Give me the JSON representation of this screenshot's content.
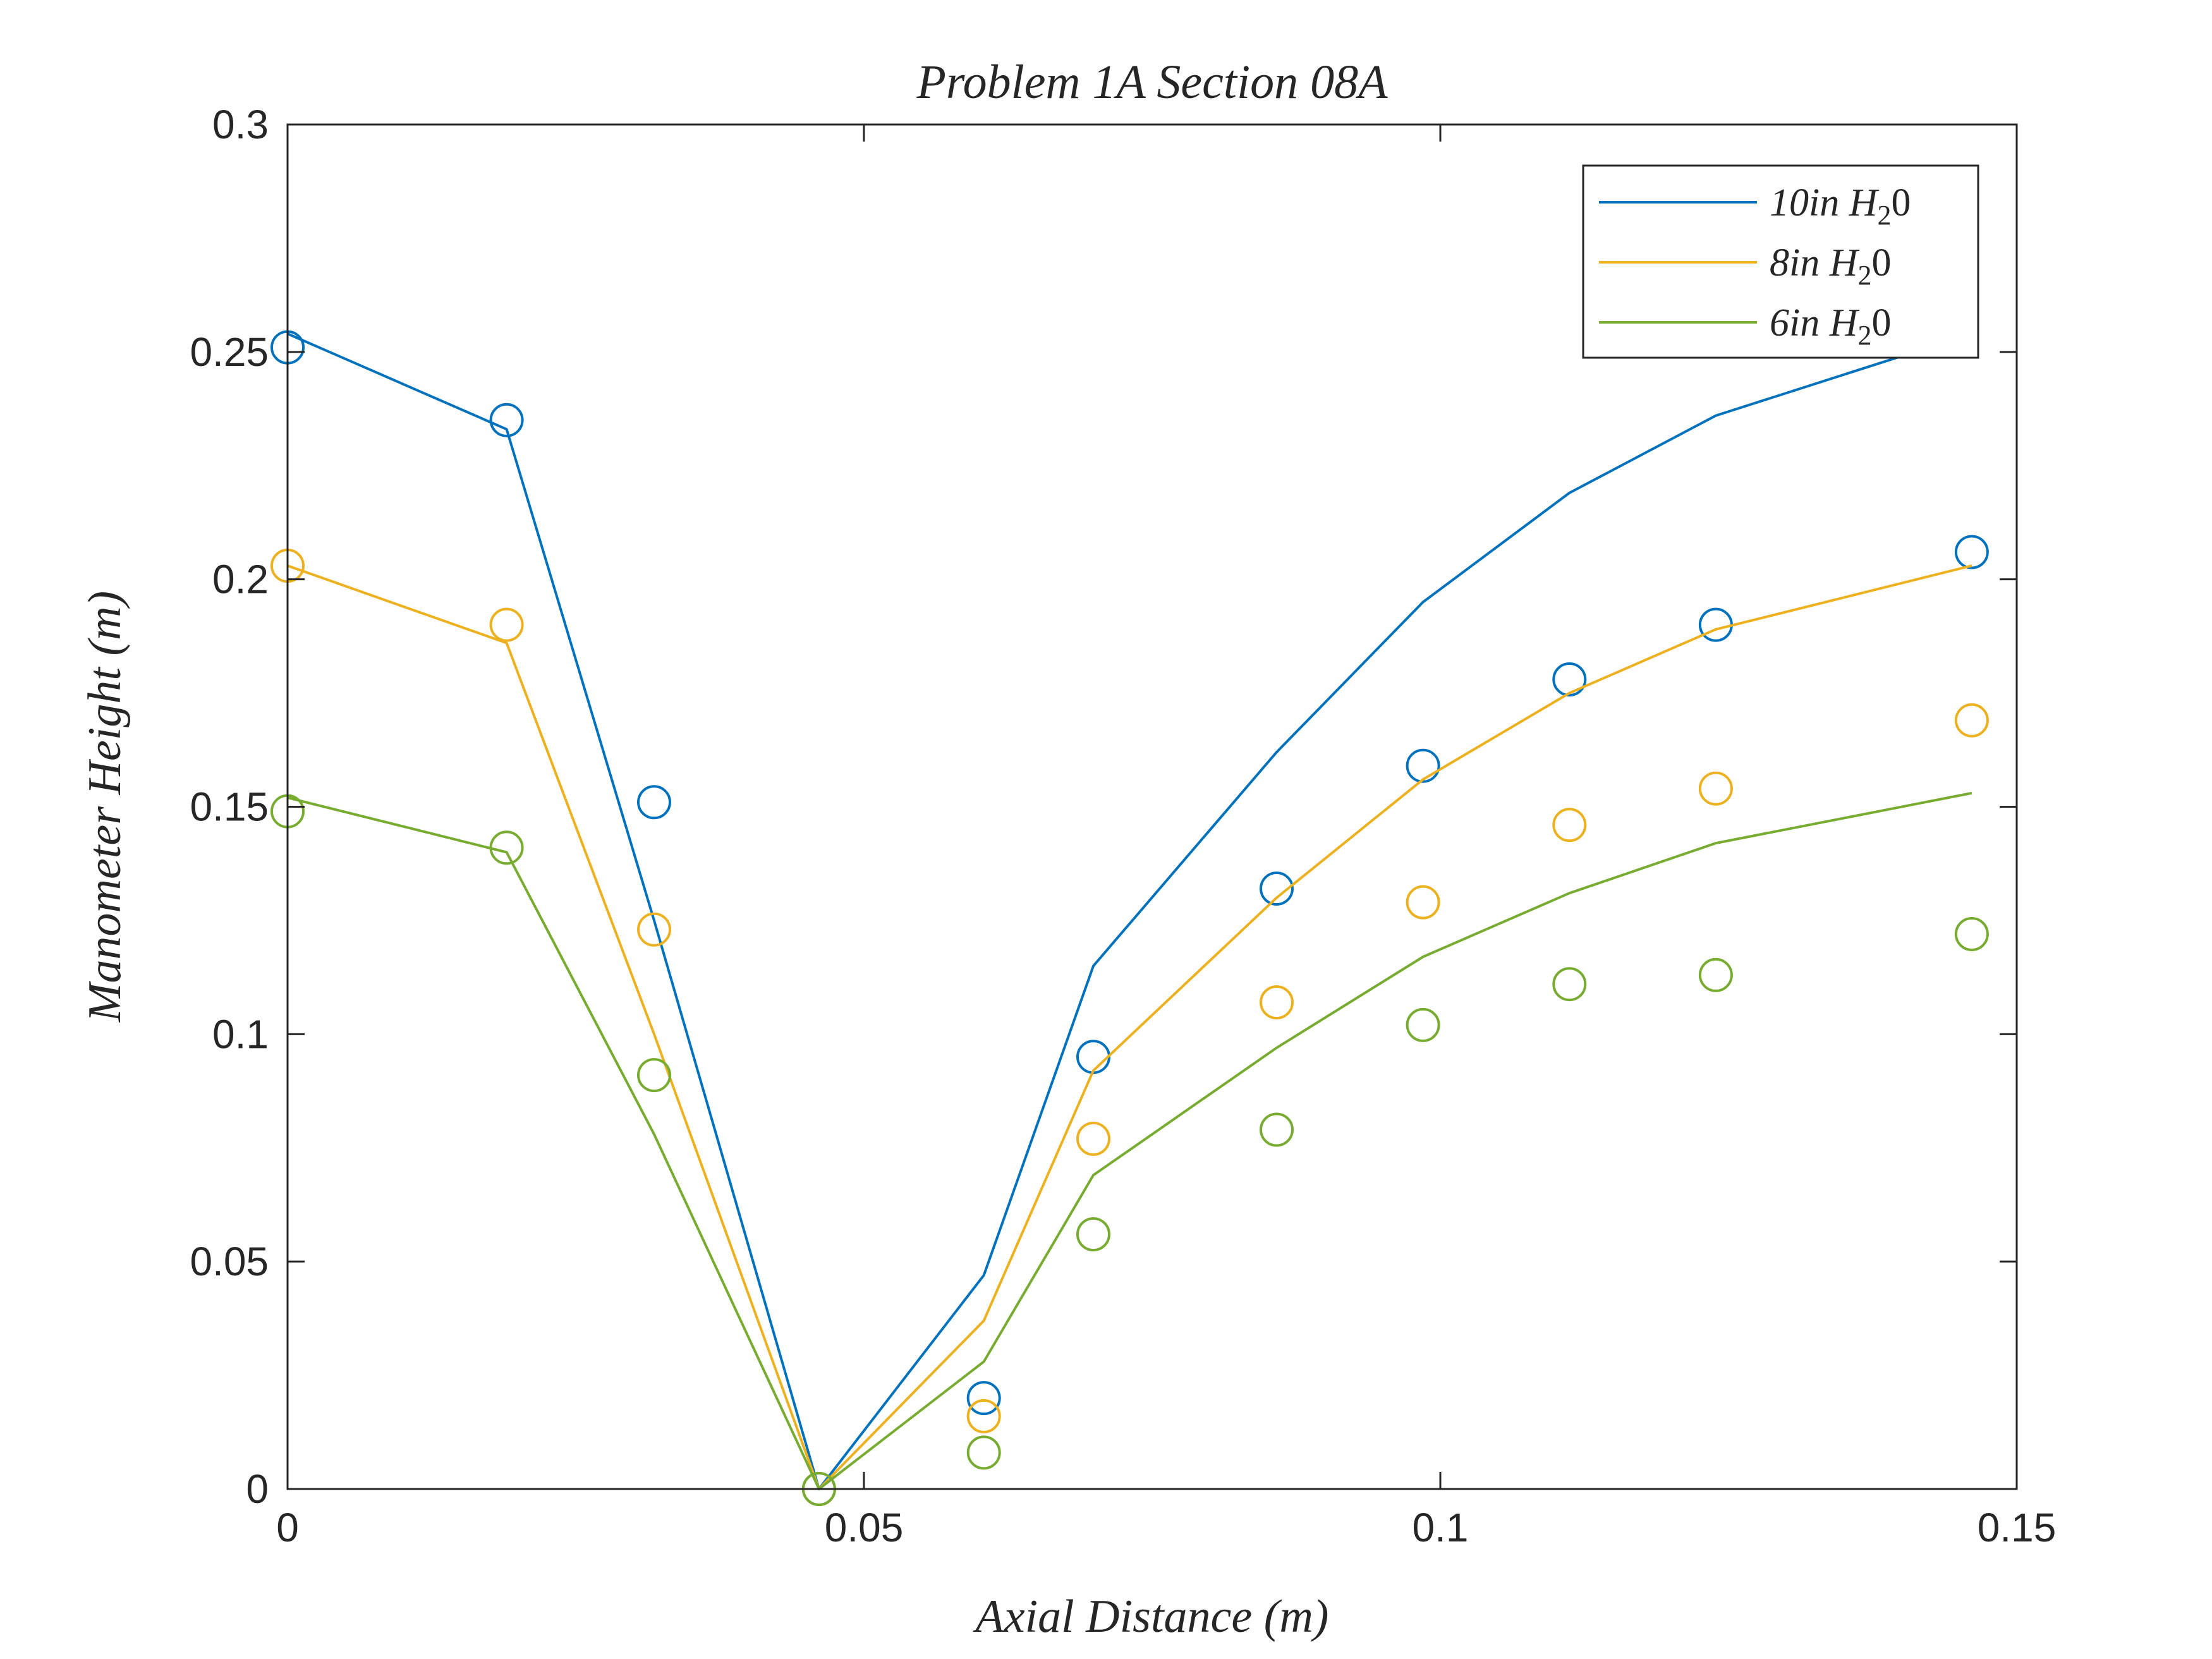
{
  "chart_data": {
    "type": "line",
    "title": "Problem 1A Section 08A",
    "xlabel": "Axial Distance (m)",
    "ylabel": "Manometer Height (m)",
    "xlim": [
      0,
      0.15
    ],
    "ylim": [
      0,
      0.3
    ],
    "xticks": [
      0,
      0.05,
      0.1,
      0.15
    ],
    "xtick_labels": [
      "0",
      "0.05",
      "0.1",
      "0.15"
    ],
    "yticks": [
      0,
      0.05,
      0.1,
      0.15,
      0.2,
      0.25,
      0.3
    ],
    "ytick_labels": [
      "0",
      "0.05",
      "0.1",
      "0.15",
      "0.2",
      "0.25",
      "0.3"
    ],
    "grid": false,
    "legend_position": "top-right",
    "x": [
      0,
      0.019,
      0.0318,
      0.0461,
      0.0604,
      0.0699,
      0.0858,
      0.0985,
      0.1112,
      0.1239,
      0.1461
    ],
    "series": [
      {
        "name": "10in H_2 0",
        "legend_main": "10in H",
        "legend_sub": "2",
        "legend_tail": "0",
        "color": "#0072BD",
        "line_values": [
          0.254,
          0.233,
          0.125,
          0.0,
          0.047,
          0.115,
          0.162,
          0.195,
          0.219,
          0.236,
          0.254
        ],
        "marker_values": [
          0.251,
          0.235,
          0.151,
          0.0,
          0.02,
          0.095,
          0.132,
          0.159,
          0.178,
          0.19,
          0.206
        ]
      },
      {
        "name": "8in H_2 0",
        "legend_main": "8in H",
        "legend_sub": "2",
        "legend_tail": "0",
        "color": "#EDB120",
        "line_values": [
          0.203,
          0.186,
          0.1,
          0.0,
          0.037,
          0.092,
          0.13,
          0.156,
          0.175,
          0.189,
          0.203
        ],
        "marker_values": [
          0.203,
          0.19,
          0.123,
          0.0,
          0.016,
          0.077,
          0.107,
          0.129,
          0.146,
          0.154,
          0.169
        ]
      },
      {
        "name": "6in H_2 0",
        "legend_main": "6in H",
        "legend_sub": "2",
        "legend_tail": "0",
        "color": "#77AC30",
        "line_values": [
          0.152,
          0.14,
          0.078,
          0.0,
          0.028,
          0.069,
          0.097,
          0.117,
          0.131,
          0.142,
          0.153
        ],
        "marker_values": [
          0.149,
          0.141,
          0.091,
          0.0,
          0.008,
          0.056,
          0.079,
          0.102,
          0.111,
          0.113,
          0.122
        ]
      }
    ]
  }
}
